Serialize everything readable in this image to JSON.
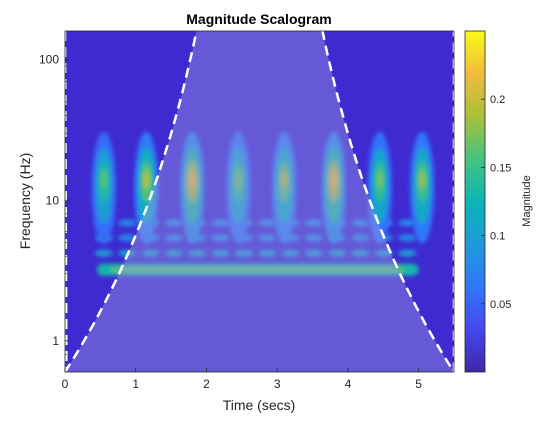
{
  "chart_data": {
    "type": "heatmap",
    "title": "Magnitude Scalogram",
    "xlabel": "Time (secs)",
    "ylabel": "Frequency (Hz)",
    "xlim": [
      0,
      5.5
    ],
    "ylim": [
      0.6,
      160
    ],
    "y_scale": "log",
    "x_ticks": [
      0,
      1,
      2,
      3,
      4,
      5
    ],
    "x_tick_labels": [
      "0",
      "1",
      "2",
      "3",
      "4",
      "5"
    ],
    "y_ticks": [
      1,
      10,
      100
    ],
    "y_tick_labels": [
      "1",
      "10",
      "100"
    ],
    "colorbar": {
      "label": "Magnitude",
      "range": [
        0,
        0.25
      ],
      "ticks": [
        0.05,
        0.1,
        0.15,
        0.2
      ],
      "tick_labels": [
        "0.05",
        "0.1",
        "0.15",
        "0.2"
      ],
      "colormap": "parula"
    },
    "features": {
      "bursts": {
        "times": [
          0.55,
          1.15,
          1.8,
          2.45,
          3.1,
          3.8,
          4.45,
          5.05
        ],
        "peak_frequency": 14,
        "peak_magnitudes": [
          0.16,
          0.19,
          0.22,
          0.17,
          0.19,
          0.22,
          0.17,
          0.18
        ]
      },
      "tone_band": {
        "frequency": 3.2,
        "time_range": [
          0.45,
          5.0
        ],
        "magnitude": 0.13
      },
      "harmonic_rows": {
        "frequencies": [
          4.2,
          5.4,
          6.9
        ],
        "magnitude": 0.07
      }
    },
    "cone_of_influence": {
      "style": "white dashed",
      "minimum_time": 2.75,
      "minimum_frequency": 0.6,
      "left_top_frequency": 90
    },
    "grid": false,
    "legend": "none"
  },
  "colors": {
    "cone_line": "#ffffff",
    "axis": "#262626",
    "background": "#ffffff",
    "parula_low": "#3e26a8",
    "parula_high": "#f9fb15"
  }
}
